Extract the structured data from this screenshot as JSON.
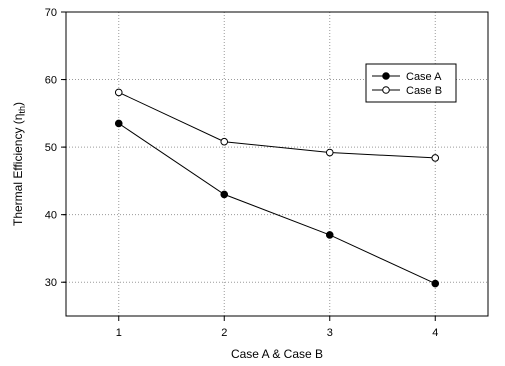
{
  "chart_data": {
    "type": "line",
    "title": "",
    "xlabel": "Case A & Case B",
    "ylabel_main": "Thermal Efficiency (",
    "ylabel_symbol": "η",
    "ylabel_sub": "th",
    "ylabel_close": ")",
    "x": [
      1,
      2,
      3,
      4
    ],
    "xticks": [
      "1",
      "2",
      "3",
      "4"
    ],
    "xlim": [
      0.5,
      4.5
    ],
    "ylim": [
      25,
      70
    ],
    "yticks": [
      "30",
      "40",
      "50",
      "60",
      "70"
    ],
    "grid": true,
    "legend_position": "top-right",
    "series": [
      {
        "name": "Case A",
        "marker": "filled-circle",
        "values": [
          53.5,
          43.0,
          37.0,
          29.8
        ]
      },
      {
        "name": "Case B",
        "marker": "open-circle",
        "values": [
          58.1,
          50.8,
          49.2,
          48.4
        ]
      }
    ]
  }
}
